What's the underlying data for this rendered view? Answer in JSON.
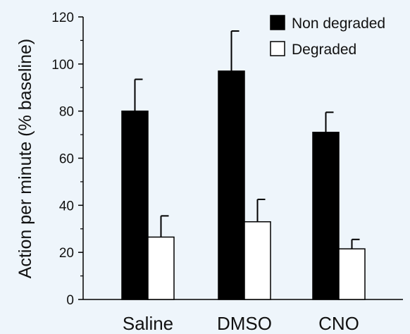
{
  "chart_data": {
    "type": "bar",
    "categories": [
      "Saline",
      "DMSO",
      "CNO"
    ],
    "series": [
      {
        "name": "Non degraded",
        "values": [
          80,
          97,
          71
        ],
        "errors": [
          13.5,
          17,
          8.5
        ],
        "color": "#000000"
      },
      {
        "name": "Degraded",
        "values": [
          26.5,
          33,
          21.5
        ],
        "errors": [
          9,
          9.5,
          4
        ],
        "color": "#ffffff"
      }
    ],
    "ylabel": "Action per minute (% baseline)",
    "xlabel": "",
    "ylim": [
      0,
      120
    ],
    "yticks": [
      0,
      20,
      40,
      60,
      80,
      100,
      120
    ],
    "grid": false,
    "legend_position": "top-right"
  }
}
